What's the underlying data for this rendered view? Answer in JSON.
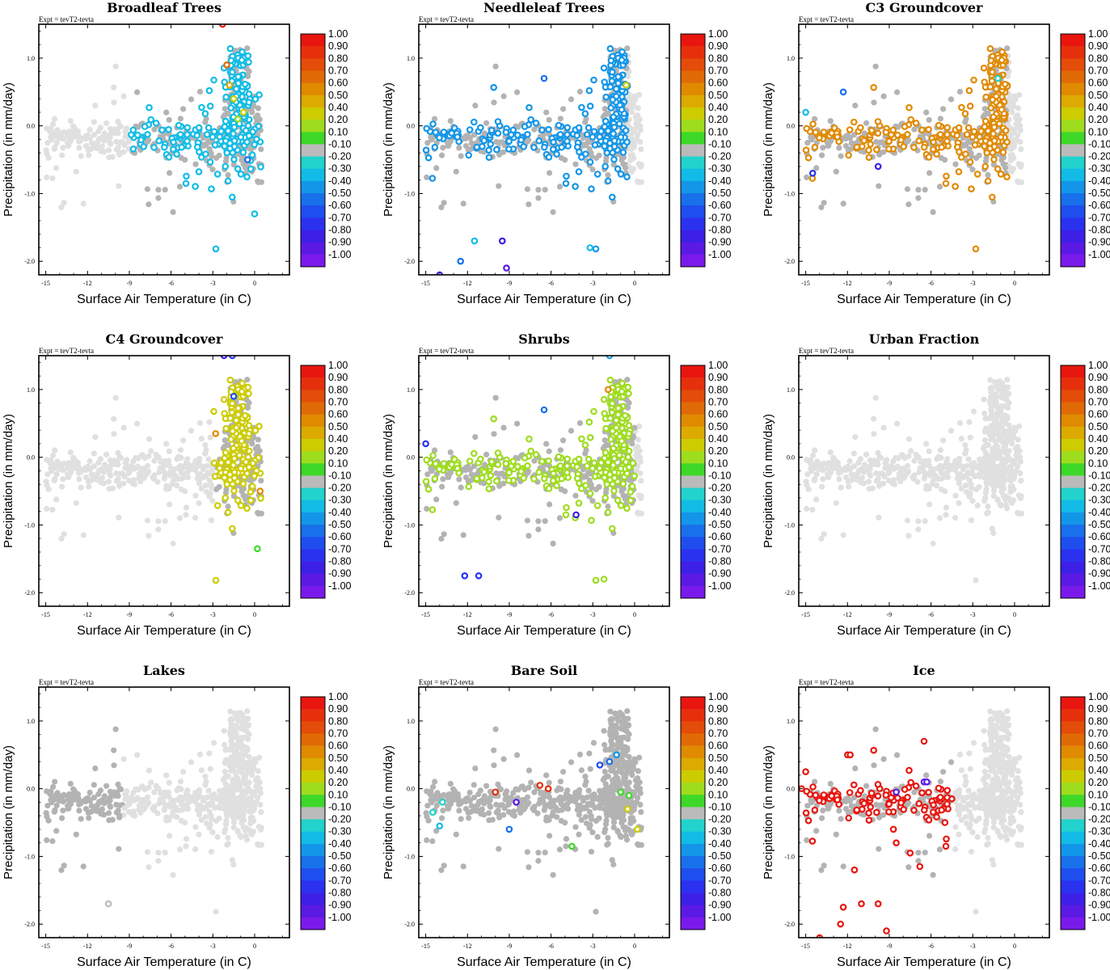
{
  "figure": {
    "expt_label": "Expt = tevT2-tevta",
    "xlabel": "Surface Air Temperature (in C)",
    "ylabel": "Precipitation (in mm/day)",
    "x_ticks": [
      "-15",
      "-12",
      "-9",
      "-6",
      "-3",
      "0"
    ],
    "y_ticks": [
      "1.0",
      "0.0",
      "-1.0",
      "-2.0"
    ],
    "colorbar": {
      "labels": [
        "1.00",
        "0.90",
        "0.80",
        "0.70",
        "0.60",
        "0.50",
        "0.40",
        "0.20",
        "0.10",
        "-0.10",
        "-0.20",
        "-0.30",
        "-0.40",
        "-0.50",
        "-0.60",
        "-0.70",
        "-0.80",
        "-0.90",
        "-1.00"
      ],
      "colors": [
        "#e8160f",
        "#e6300c",
        "#e34c09",
        "#e06a05",
        "#e08a00",
        "#dcaa00",
        "#cccc00",
        "#9edc1e",
        "#3ed829",
        "#bbbbbb",
        "#22d2cc",
        "#12bce6",
        "#1496e8",
        "#1870ea",
        "#1e4eee",
        "#2a32f0",
        "#3c20e6",
        "#5a1ae4",
        "#7a1aea"
      ]
    },
    "colors": {
      "background_points": "#e0e0e0",
      "neutral_points": "#b3b3b3"
    }
  },
  "chart_data": [
    {
      "type": "scatter",
      "title": "Broadleaf Trees",
      "xlim": [
        -15.5,
        2.5
      ],
      "ylim": [
        -2.2,
        1.5
      ],
      "dominant_x_range": [
        -9,
        0.5
      ],
      "dominant_color": "#12bce6",
      "emphasis_points": [
        [
          -2.3,
          1.5,
          1.0
        ],
        [
          -2.0,
          0.9,
          0.7
        ],
        [
          -1.8,
          0.6,
          0.5
        ],
        [
          -1.5,
          0.4,
          0.3
        ],
        [
          -1.2,
          0.1,
          0.2
        ],
        [
          -0.5,
          -0.5,
          -0.5
        ],
        [
          0.0,
          -1.3,
          -0.3
        ],
        [
          -0.8,
          0.2,
          0.4
        ]
      ]
    },
    {
      "type": "scatter",
      "title": "Needleleaf Trees",
      "xlim": [
        -15.5,
        2.5
      ],
      "ylim": [
        -2.2,
        1.5
      ],
      "dominant_x_range": [
        -15,
        -0.5
      ],
      "dominant_color": "#1496e8",
      "emphasis_points": [
        [
          -6.5,
          0.7,
          -0.5
        ],
        [
          -9.5,
          -1.7,
          -0.8
        ],
        [
          -9.2,
          -2.1,
          -0.9
        ],
        [
          -14,
          -2.2,
          -0.8
        ],
        [
          -12.5,
          -2.0,
          -0.5
        ],
        [
          -11.5,
          -1.7,
          -0.3
        ],
        [
          -3.2,
          -1.8,
          -0.3
        ],
        [
          -0.6,
          0.6,
          0.4
        ]
      ]
    },
    {
      "type": "scatter",
      "title": "C3 Groundcover",
      "xlim": [
        -15.5,
        2.5
      ],
      "ylim": [
        -2.2,
        1.5
      ],
      "dominant_x_range": [
        -15,
        -0.5
      ],
      "dominant_color": "#e08a00",
      "emphasis_points": [
        [
          -1.2,
          0.7,
          -0.2
        ],
        [
          -14.5,
          -0.7,
          -0.7
        ],
        [
          -15,
          0.2,
          -0.3
        ],
        [
          -12.3,
          0.5,
          -0.5
        ],
        [
          -9.8,
          -0.6,
          -0.8
        ]
      ]
    },
    {
      "type": "scatter",
      "title": "C4 Groundcover",
      "xlim": [
        -15.5,
        2.5
      ],
      "ylim": [
        -2.2,
        1.5
      ],
      "dominant_x_range": [
        -3,
        0.5
      ],
      "dominant_color": "#cccc00",
      "emphasis_points": [
        [
          -2.2,
          1.5,
          -0.8
        ],
        [
          -1.6,
          1.5,
          -0.7
        ],
        [
          -1.5,
          0.9,
          -0.6
        ],
        [
          0.2,
          -1.35,
          0.1
        ],
        [
          -2.8,
          0.35,
          0.6
        ],
        [
          0.4,
          -0.5,
          0.6
        ]
      ]
    },
    {
      "type": "scatter",
      "title": "Shrubs",
      "xlim": [
        -15.5,
        2.5
      ],
      "ylim": [
        -2.2,
        1.5
      ],
      "dominant_x_range": [
        -15,
        0
      ],
      "dominant_color": "#9edc1e",
      "emphasis_points": [
        [
          -12.2,
          -1.75,
          -0.7
        ],
        [
          -11.2,
          -1.75,
          -0.7
        ],
        [
          -2.2,
          -1.8,
          0.2
        ],
        [
          -1.8,
          1.5,
          -0.4
        ],
        [
          -6.5,
          0.7,
          -0.5
        ],
        [
          -15,
          0.2,
          -0.7
        ],
        [
          -4.2,
          -0.85,
          -0.8
        ],
        [
          -1.9,
          1.0,
          0.6
        ]
      ]
    },
    {
      "type": "scatter",
      "title": "Urban Fraction",
      "xlim": [
        -15.5,
        2.5
      ],
      "ylim": [
        -2.2,
        1.5
      ],
      "dominant_x_range": [
        -15,
        0.5
      ],
      "dominant_color": "#e0e0e0",
      "emphasis_points": []
    },
    {
      "type": "scatter",
      "title": "Lakes",
      "xlim": [
        -15.5,
        2.5
      ],
      "ylim": [
        -2.2,
        1.5
      ],
      "dominant_x_range": [
        -15,
        -9.5
      ],
      "dominant_color": "#b3b3b3",
      "emphasis_points": [
        [
          -10.5,
          -1.7,
          -0.1
        ]
      ]
    },
    {
      "type": "scatter",
      "title": "Bare Soil",
      "xlim": [
        -15.5,
        2.5
      ],
      "ylim": [
        -2.2,
        1.5
      ],
      "dominant_x_range": [
        -15,
        0.5
      ],
      "dominant_color": "#b3b3b3",
      "emphasis_points": [
        [
          -10,
          -0.05,
          0.9
        ],
        [
          -6.8,
          0.05,
          0.9
        ],
        [
          -6.2,
          0.0,
          0.9
        ],
        [
          -8.5,
          -0.2,
          -0.9
        ],
        [
          -4.5,
          -0.85,
          0.1
        ],
        [
          0.2,
          -0.6,
          0.3
        ],
        [
          -1.3,
          0.5,
          -0.4
        ],
        [
          -1.8,
          0.4,
          -0.5
        ],
        [
          -2.5,
          0.35,
          -0.6
        ],
        [
          -9,
          -0.6,
          -0.5
        ],
        [
          -14,
          -0.55,
          -0.3
        ],
        [
          -0.5,
          -0.3,
          0.3
        ],
        [
          -1.0,
          -0.05,
          0.1
        ],
        [
          -0.4,
          -0.1,
          0.1
        ],
        [
          -14.5,
          -0.35,
          -0.2
        ],
        [
          -13.8,
          -0.2,
          -0.2
        ]
      ]
    },
    {
      "type": "scatter",
      "title": "Ice",
      "xlim": [
        -15.5,
        2.5
      ],
      "ylim": [
        -2.2,
        1.5
      ],
      "dominant_x_range": [
        -15,
        -4.5
      ],
      "dominant_color": "#e8160f",
      "emphasis_points": [
        [
          -6.5,
          0.7,
          1.0
        ],
        [
          -6.5,
          0.1,
          -0.9
        ],
        [
          -6.3,
          0.1,
          -0.9
        ],
        [
          -9.2,
          -2.1,
          1.0
        ],
        [
          -14.0,
          -2.2,
          1.0
        ],
        [
          -9.8,
          -1.7,
          1.0
        ],
        [
          -12.5,
          -2.0,
          1.0
        ],
        [
          -12.3,
          -1.75,
          1.0
        ],
        [
          -11.0,
          -1.7,
          1.0
        ],
        [
          -8.5,
          -0.05,
          -0.9
        ],
        [
          -6.8,
          -1.15,
          1.0
        ],
        [
          -7.5,
          -0.95,
          1.0
        ],
        [
          -11.5,
          -1.2,
          1.0
        ],
        [
          -5,
          -0.5,
          1.0
        ],
        [
          -4.5,
          -0.15,
          1.0
        ],
        [
          -15,
          0.25,
          1.0
        ],
        [
          -15.3,
          0.0,
          1.0
        ],
        [
          -8.7,
          -0.6,
          1.0
        ],
        [
          -8.5,
          -0.8,
          1.0
        ],
        [
          -12,
          0.5,
          1.0
        ],
        [
          -11.8,
          0.5,
          1.0
        ]
      ]
    }
  ]
}
